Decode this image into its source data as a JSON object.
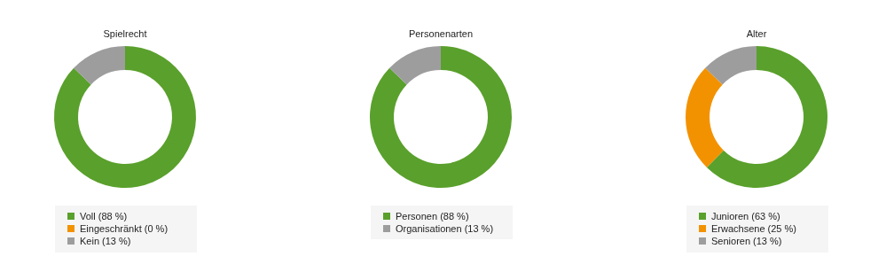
{
  "chart_data": [
    {
      "type": "donut",
      "title": "Spielrecht",
      "categories": [
        "Voll (88 %)",
        "Eingeschränkt (0 %)",
        "Kein (13 %)"
      ],
      "values": [
        88,
        0,
        13
      ],
      "colors": [
        "#5aa02c",
        "#f39200",
        "#9d9d9d"
      ],
      "legend": "bottom"
    },
    {
      "type": "donut",
      "title": "Personenarten",
      "categories": [
        "Personen (88 %)",
        "Organisationen (13 %)"
      ],
      "values": [
        88,
        13
      ],
      "colors": [
        "#5aa02c",
        "#9d9d9d"
      ],
      "legend": "bottom"
    },
    {
      "type": "donut",
      "title": "Alter",
      "categories": [
        "Junioren (63 %)",
        "Erwachsene (25 %)",
        "Senioren (13 %)"
      ],
      "values": [
        63,
        25,
        13
      ],
      "colors": [
        "#5aa02c",
        "#f39200",
        "#9d9d9d"
      ],
      "legend": "bottom"
    }
  ]
}
